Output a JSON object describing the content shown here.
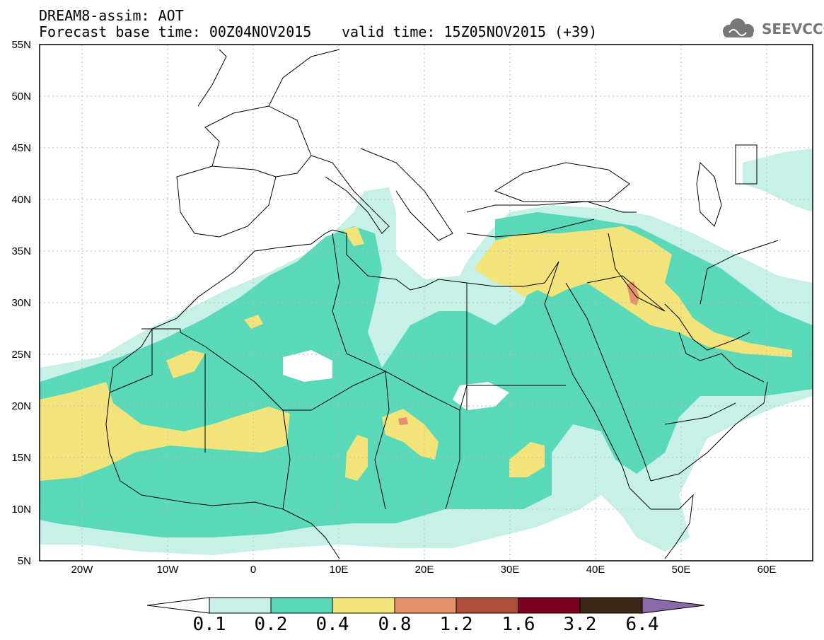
{
  "header": {
    "title": "DREAM8-assim: AOT",
    "base_time": "Forecast base time: 00Z04NOV2015",
    "valid_time": "valid time: 15Z05NOV2015 (+39)",
    "logo_text": "SEEVCCC",
    "logo_icon": "cloud-icon"
  },
  "map": {
    "lat_labels": [
      "55N",
      "50N",
      "45N",
      "40N",
      "35N",
      "30N",
      "25N",
      "20N",
      "15N",
      "10N",
      "5N"
    ],
    "lon_labels": [
      "20W",
      "10W",
      "0",
      "10E",
      "20E",
      "30E",
      "40E",
      "50E",
      "60E"
    ],
    "lon_range": [
      -25,
      65
    ],
    "lat_range": [
      5,
      55
    ],
    "grid": "dotted"
  },
  "colorbar": {
    "labels": [
      "0.1",
      "0.2",
      "0.4",
      "0.8",
      "1.2",
      "1.6",
      "3.2",
      "6.4"
    ],
    "colors": [
      "#ffffff",
      "#c6f0e8",
      "#5ad9b8",
      "#f2e37a",
      "#e6916a",
      "#ae4e3a",
      "#7c0022",
      "#3b2817",
      "#8a6aa8"
    ]
  }
}
